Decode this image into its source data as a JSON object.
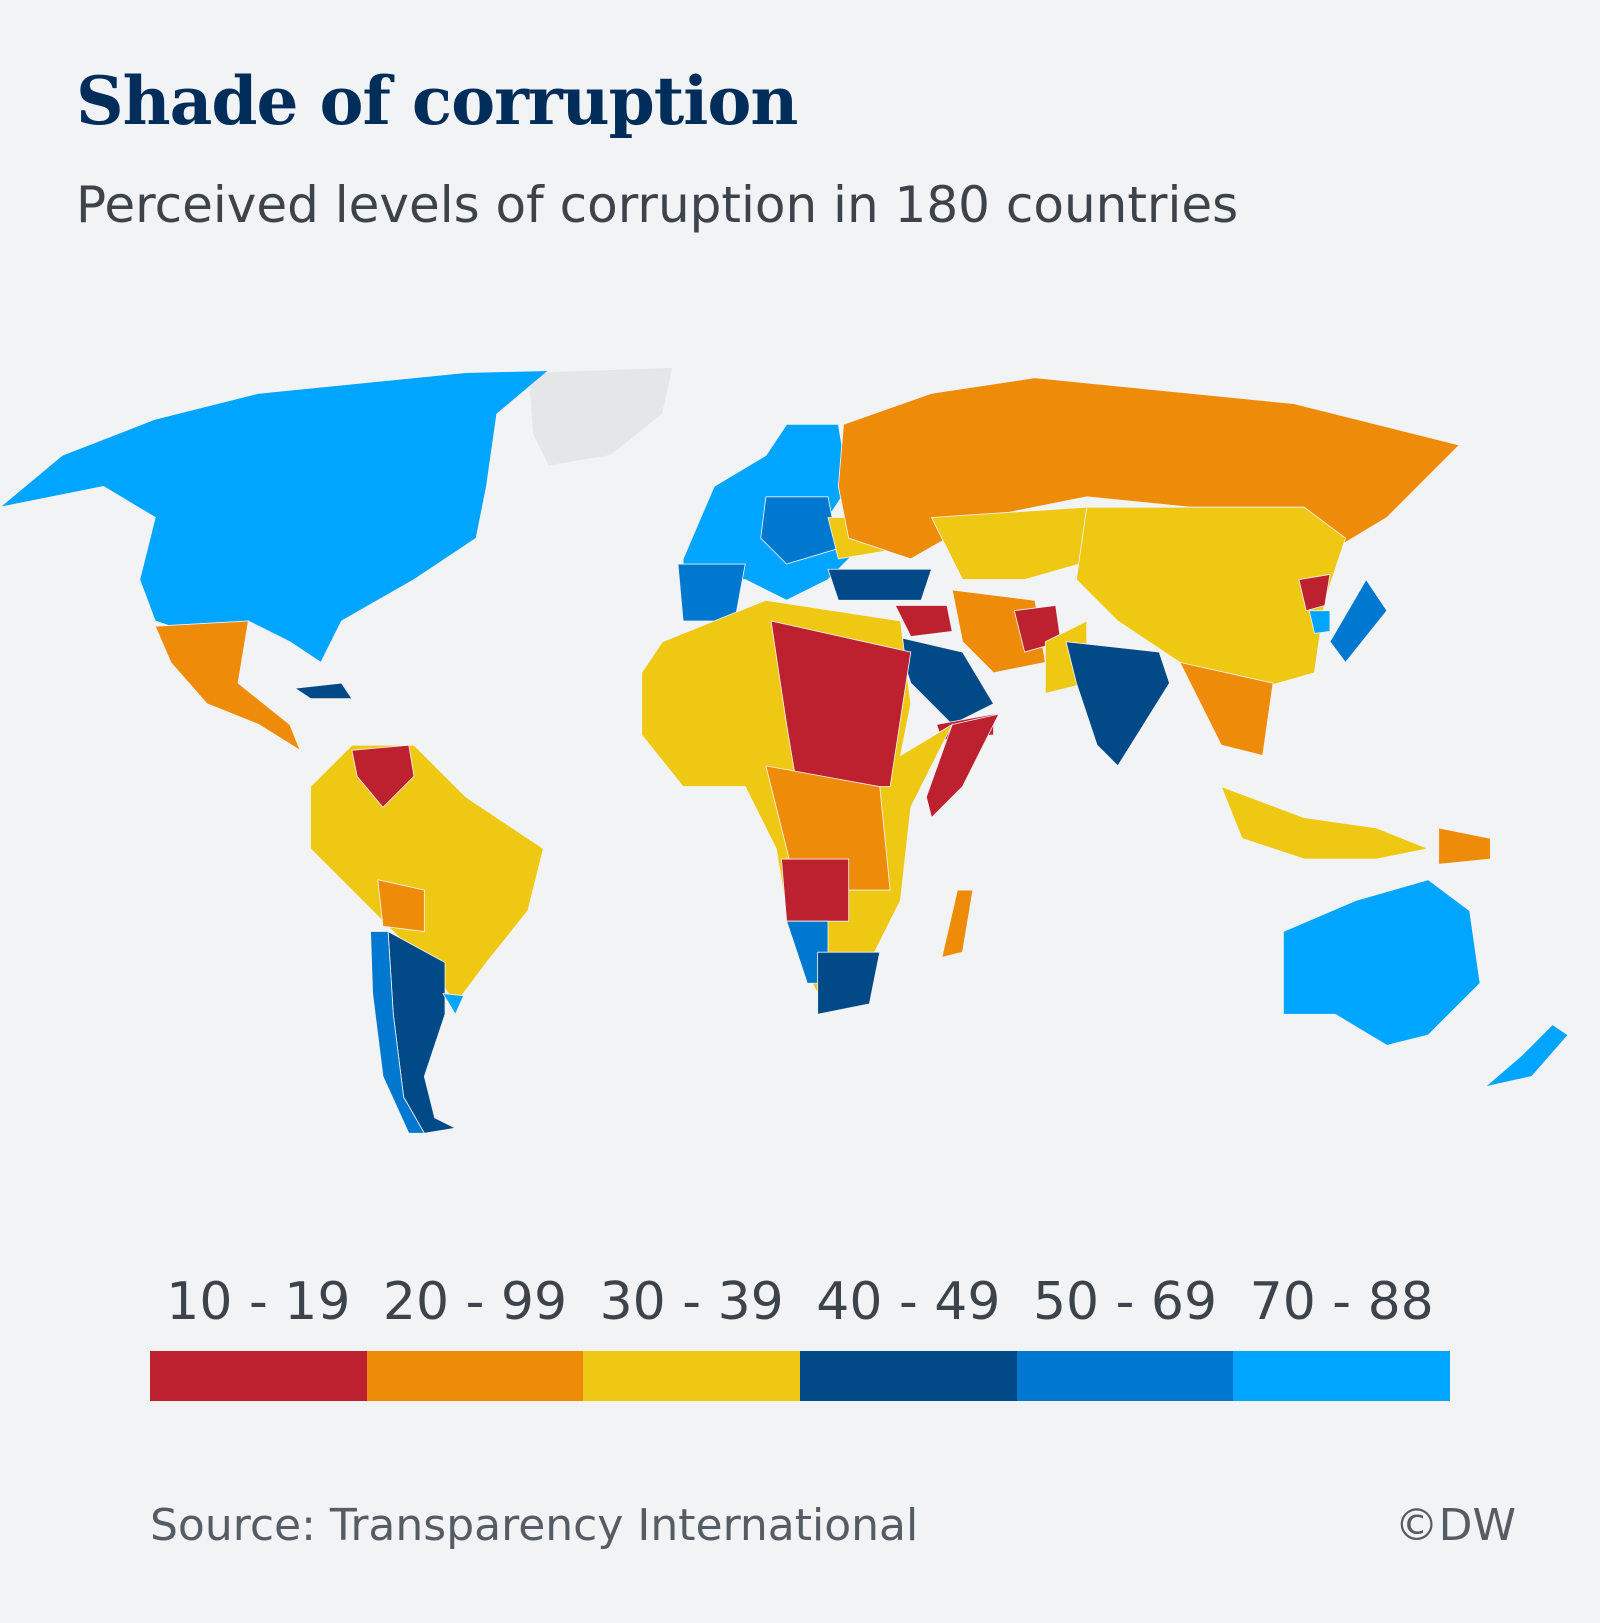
{
  "title": "Shade of corruption",
  "subtitle": "Perceived levels of corruption in 180 countries",
  "chart_data": {
    "type": "choropleth",
    "title": "Shade of corruption",
    "subtitle": "Perceived levels of corruption in 180 countries",
    "legend": [
      {
        "label": "10 - 19",
        "color": "#bd202e"
      },
      {
        "label": "20 - 99",
        "color": "#ee8c0a"
      },
      {
        "label": "30 - 39",
        "color": "#efc814"
      },
      {
        "label": "40 - 49",
        "color": "#024a87"
      },
      {
        "label": "50 - 69",
        "color": "#0078d0"
      },
      {
        "label": "70 - 88",
        "color": "#00a5ff"
      }
    ],
    "no_data_color": "#e4e6e8",
    "legend_placement": "bottom"
  },
  "source": "Source: Transparency International",
  "credit": "©DW"
}
